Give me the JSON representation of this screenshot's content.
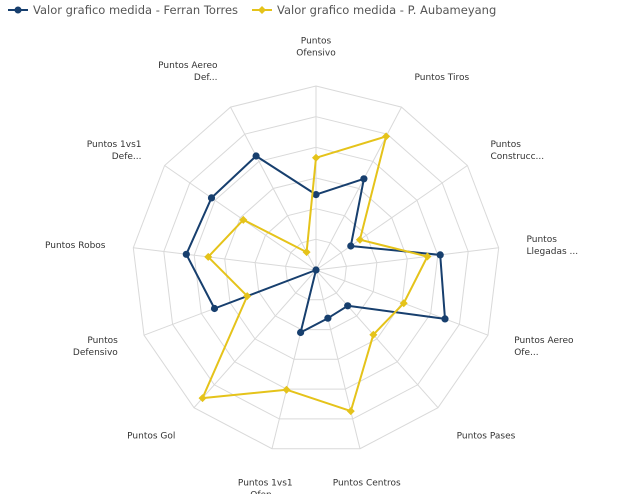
{
  "chart_data": {
    "type": "radar",
    "scale_max": 100,
    "grid_levels": 6,
    "grid": true,
    "legend_position": "top-left",
    "axes": [
      [
        "Puntos",
        "Ofensivo"
      ],
      [
        "Puntos Tiros"
      ],
      [
        "Puntos",
        "Construcc..."
      ],
      [
        "Puntos",
        "Llegadas ..."
      ],
      [
        "Puntos Aereo",
        "Ofe..."
      ],
      [
        "Puntos Pases"
      ],
      [
        "Puntos Centros"
      ],
      [
        "Puntos 1vs1",
        "Ofen..."
      ],
      [
        "Puntos Gol"
      ],
      [
        "Puntos",
        "Defensivo"
      ],
      [
        "Puntos Robos"
      ],
      [
        "Puntos 1vs1",
        "Defe..."
      ],
      [
        "Puntos Aereo",
        "Def..."
      ]
    ],
    "series": [
      {
        "name": "Valor grafico medida - Ferran Torres",
        "color": "#173f6e",
        "values": [
          41,
          56,
          23,
          68,
          75,
          26,
          27,
          35,
          0,
          59,
          71,
          69,
          70
        ]
      },
      {
        "name": "Valor grafico medida - P. Aubameyang",
        "color": "#e5c31a",
        "values": [
          61,
          82,
          29,
          61,
          51,
          47,
          79,
          67,
          93,
          40,
          59,
          48,
          11
        ]
      }
    ]
  }
}
